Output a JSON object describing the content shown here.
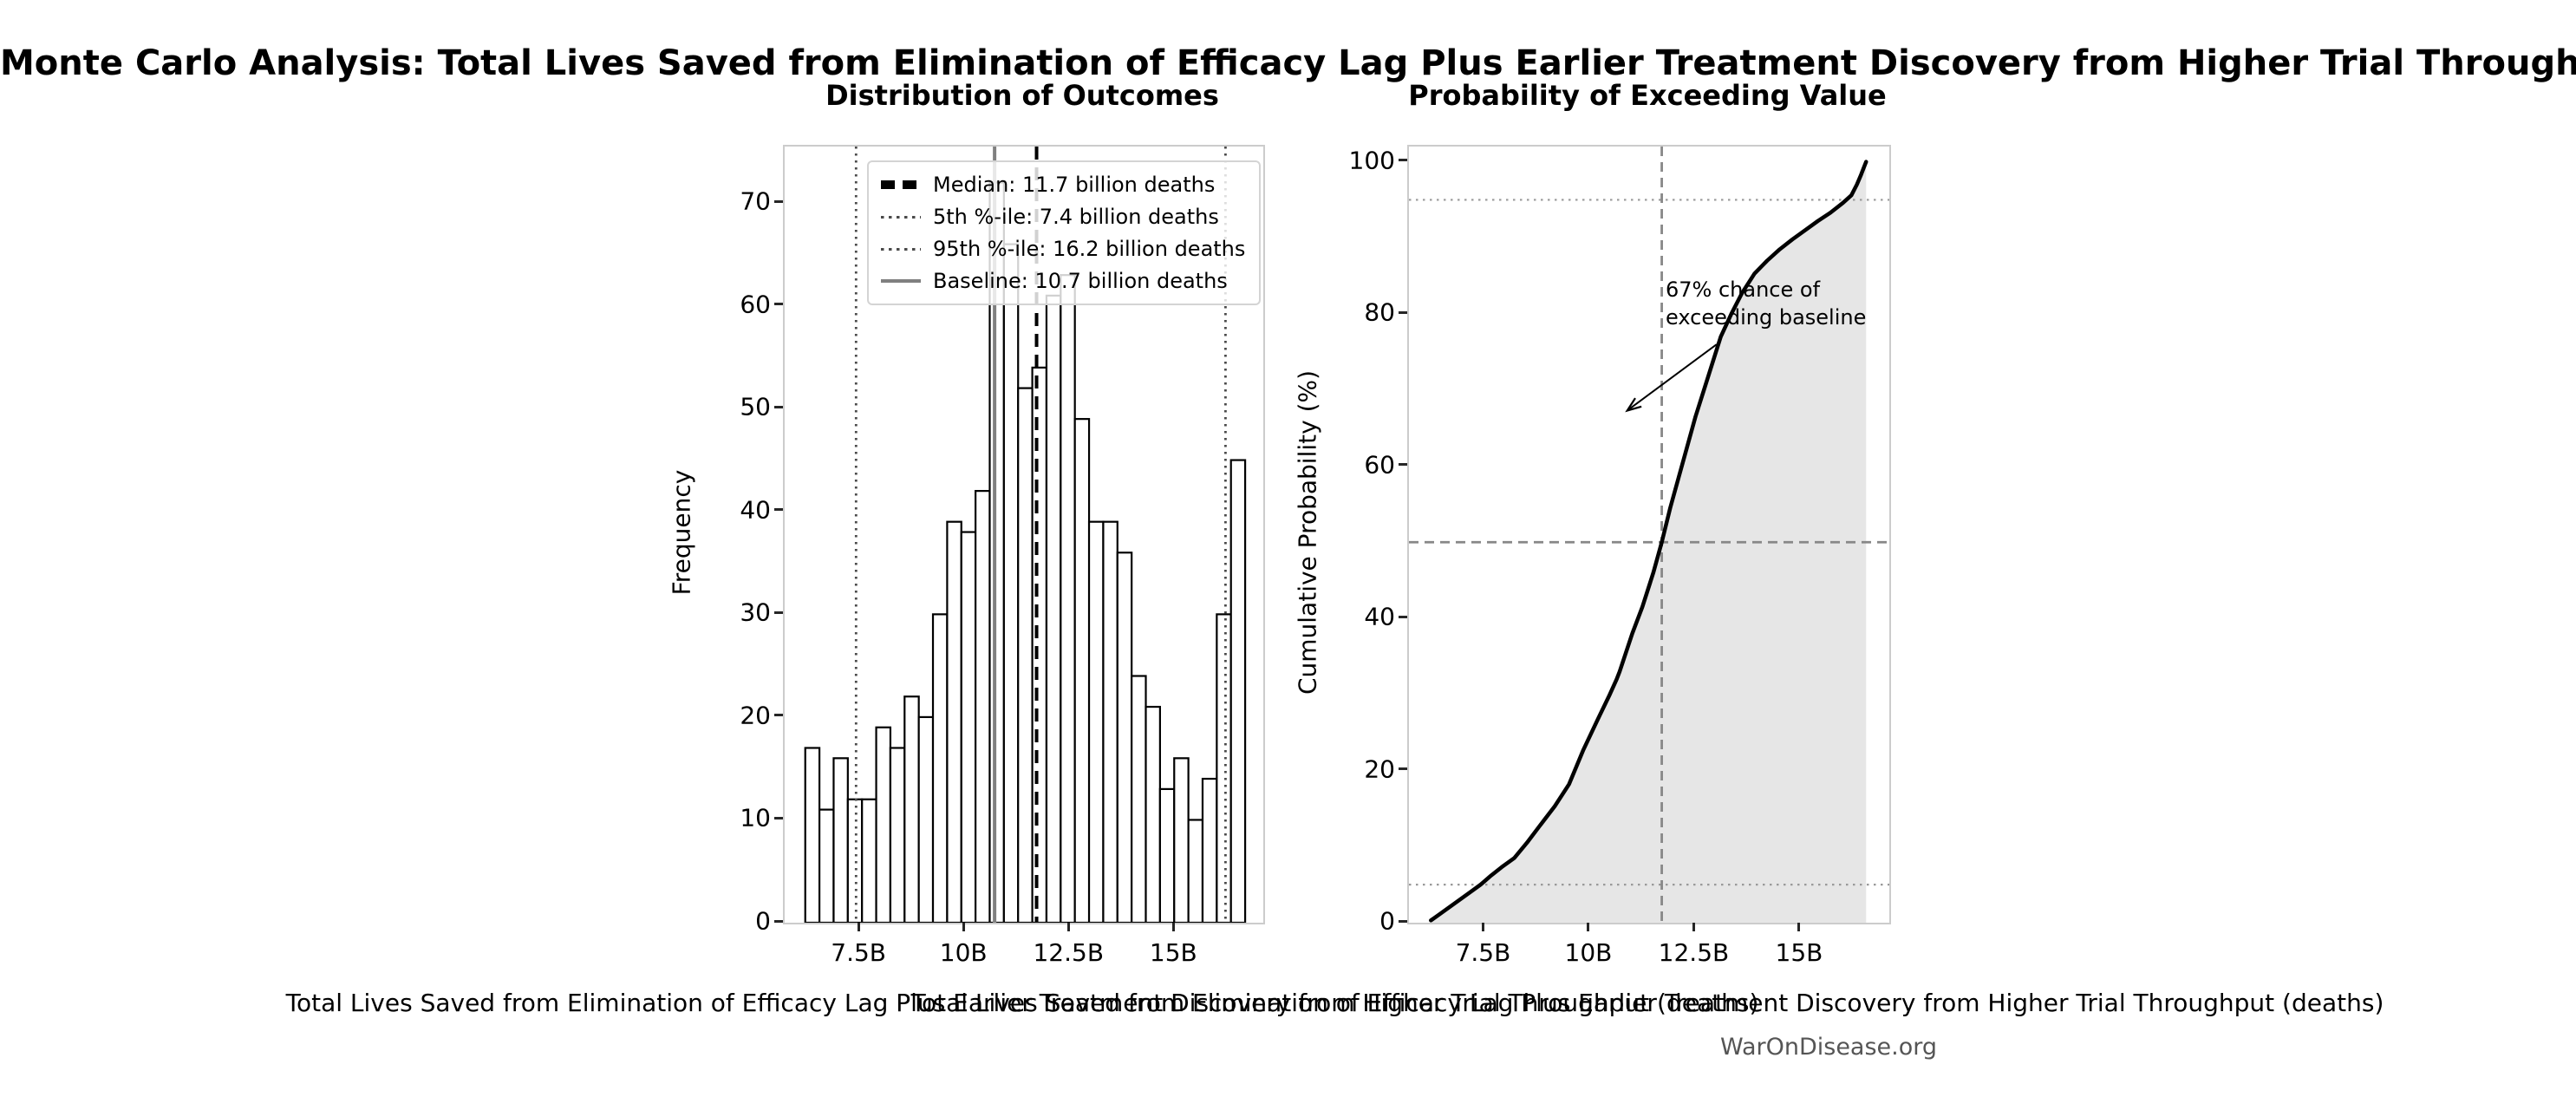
{
  "title": "Monte Carlo Analysis: Total Lives Saved from Elimination of Efficacy Lag Plus Earlier Treatment Discovery from Higher Trial Throughput",
  "attribution": "WarOnDisease.org",
  "colors": {
    "background": "#ffffff",
    "bar_fill": "#ffffff",
    "bar_edge": "#000000",
    "median_line": "#000000",
    "percentile_line": "#4a4a4a",
    "baseline_line": "#808080",
    "cdf_line": "#000000",
    "cdf_fill": "#e6e6e6",
    "guide_dashed": "#888888",
    "guide_dotted": "#999999",
    "spine": "#cccccc",
    "attribution_text": "#555555"
  },
  "chart_data": [
    {
      "type": "bar",
      "role": "histogram",
      "title": "Distribution of Outcomes",
      "xlabel": "Total Lives Saved from Elimination of Efficacy Lag Plus Earlier Treatment Discovery from Higher Trial Throughput (deaths)",
      "ylabel": "Frequency",
      "xlim": [
        5.7,
        17.1
      ],
      "ylim": [
        0,
        75.5
      ],
      "grid": false,
      "xticks": {
        "values": [
          7.5,
          10,
          12.5,
          15
        ],
        "labels": [
          "7.5B",
          "10B",
          "12.5B",
          "15B"
        ]
      },
      "yticks": {
        "values": [
          0,
          10,
          20,
          30,
          40,
          50,
          60,
          70
        ],
        "labels": [
          "0",
          "10",
          "20",
          "30",
          "40",
          "50",
          "60",
          "70"
        ]
      },
      "bins": {
        "start": 6.19,
        "width": 0.338,
        "unit": "billions of deaths"
      },
      "frequencies": [
        17,
        11,
        16,
        12,
        12,
        19,
        17,
        22,
        20,
        30,
        39,
        38,
        42,
        72,
        66,
        52,
        54,
        61,
        63,
        49,
        39,
        39,
        36,
        24,
        21,
        13,
        16,
        10,
        14,
        30,
        45
      ],
      "reference_lines": [
        {
          "x": 11.7,
          "style": "median",
          "label": "Median: 11.7 billion deaths"
        },
        {
          "x": 7.4,
          "style": "percentile",
          "label": "5th %-ile: 7.4 billion deaths"
        },
        {
          "x": 16.2,
          "style": "percentile",
          "label": "95th %-ile: 16.2 billion deaths"
        },
        {
          "x": 10.7,
          "style": "baseline",
          "label": "Baseline: 10.7 billion deaths"
        }
      ],
      "legend_position": "upper left"
    },
    {
      "type": "line",
      "role": "cumulative-distribution",
      "title": "Probability of Exceeding Value",
      "xlabel": "Total Lives Saved from Elimination of Efficacy Lag Plus Earlier Treatment Discovery from Higher Trial Throughput (deaths)",
      "ylabel": "Cumulative Probability (%)",
      "xlim": [
        5.7,
        17.1
      ],
      "ylim": [
        0,
        102
      ],
      "grid": false,
      "xticks": {
        "values": [
          7.5,
          10,
          12.5,
          15
        ],
        "labels": [
          "7.5B",
          "10B",
          "12.5B",
          "15B"
        ]
      },
      "yticks": {
        "values": [
          0,
          20,
          40,
          60,
          80,
          100
        ],
        "labels": [
          "0",
          "20",
          "40",
          "60",
          "80",
          "100"
        ]
      },
      "points": [
        [
          6.22,
          0.3
        ],
        [
          6.45,
          1.2
        ],
        [
          6.7,
          2.2
        ],
        [
          6.95,
          3.2
        ],
        [
          7.2,
          4.2
        ],
        [
          7.4,
          5.0
        ],
        [
          7.65,
          6.2
        ],
        [
          7.9,
          7.3
        ],
        [
          8.2,
          8.5
        ],
        [
          8.5,
          10.5
        ],
        [
          8.8,
          12.7
        ],
        [
          9.16,
          15.3
        ],
        [
          9.5,
          18.2
        ],
        [
          9.83,
          22.6
        ],
        [
          10.18,
          26.7
        ],
        [
          10.45,
          29.8
        ],
        [
          10.63,
          32.0
        ],
        [
          10.7,
          33.0
        ],
        [
          11.0,
          38.0
        ],
        [
          11.24,
          41.5
        ],
        [
          11.5,
          46.0
        ],
        [
          11.7,
          50.0
        ],
        [
          11.9,
          54.5
        ],
        [
          12.1,
          58.5
        ],
        [
          12.3,
          62.5
        ],
        [
          12.5,
          66.5
        ],
        [
          12.7,
          70.0
        ],
        [
          12.9,
          73.5
        ],
        [
          13.1,
          77.0
        ],
        [
          13.35,
          80.0
        ],
        [
          13.6,
          82.7
        ],
        [
          13.9,
          85.3
        ],
        [
          14.2,
          87.0
        ],
        [
          14.5,
          88.5
        ],
        [
          14.8,
          89.8
        ],
        [
          15.1,
          91.0
        ],
        [
          15.4,
          92.2
        ],
        [
          15.7,
          93.3
        ],
        [
          16.0,
          94.6
        ],
        [
          16.2,
          95.6
        ],
        [
          16.33,
          97.0
        ],
        [
          16.43,
          98.3
        ],
        [
          16.5,
          99.3
        ],
        [
          16.55,
          100.0
        ]
      ],
      "hlines": [
        {
          "y": 5,
          "style": "dotted"
        },
        {
          "y": 50,
          "style": "dashed"
        },
        {
          "y": 95,
          "style": "dotted"
        }
      ],
      "vlines": [
        {
          "x": 11.7,
          "style": "dashed"
        }
      ],
      "annotation": {
        "lines": [
          "67% chance of",
          "exceeding baseline"
        ],
        "arrow_from": [
          13.0,
          76.0
        ],
        "arrow_to": [
          10.88,
          67.3
        ]
      }
    }
  ]
}
